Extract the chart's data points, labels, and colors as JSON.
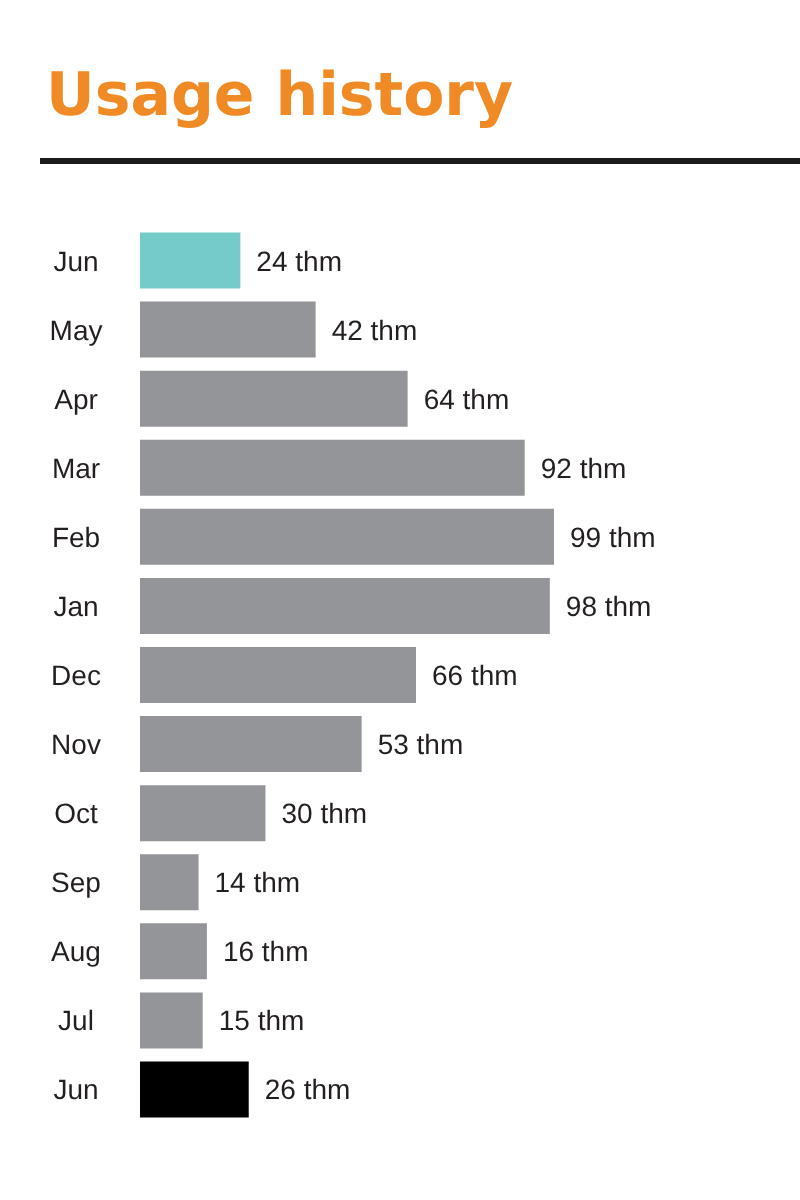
{
  "chart_data": {
    "type": "bar",
    "title": "Usage history",
    "orientation": "horizontal",
    "categories": [
      "Jun",
      "May",
      "Apr",
      "Mar",
      "Feb",
      "Jan",
      "Dec",
      "Nov",
      "Oct",
      "Sep",
      "Aug",
      "Jul",
      "Jun"
    ],
    "values": [
      24,
      42,
      64,
      92,
      99,
      98,
      66,
      53,
      30,
      14,
      16,
      15,
      26
    ],
    "colors": [
      "#74cbc8",
      "#939598",
      "#939598",
      "#939598",
      "#939598",
      "#939598",
      "#939598",
      "#939598",
      "#939598",
      "#939598",
      "#939598",
      "#939598",
      "#000000"
    ],
    "value_labels": [
      "24 thm",
      "42 thm",
      "64 thm",
      "92 thm",
      "99 thm",
      "98 thm",
      "66 thm",
      "53 thm",
      "30 thm",
      "14 thm",
      "16 thm",
      "15 thm",
      "26 thm"
    ]
  }
}
